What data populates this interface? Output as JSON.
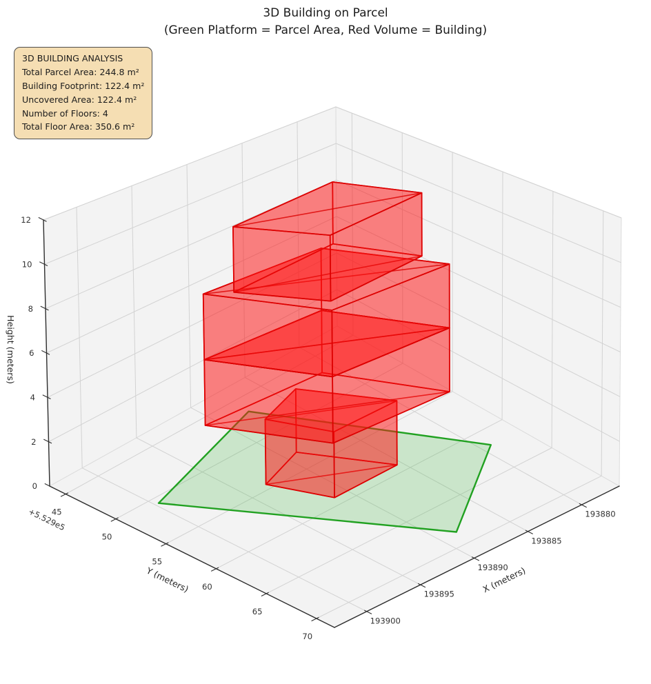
{
  "title": "3D Building on Parcel",
  "subtitle": "(Green Platform = Parcel Area, Red Volume = Building)",
  "info_box": {
    "title": "3D BUILDING ANALYSIS",
    "lines": [
      "Total Parcel Area: 244.8 m²",
      "Building Footprint: 122.4 m²",
      "Uncovered Area: 122.4 m²",
      "Number of Floors: 4",
      "Total Floor Area: 350.6 m²"
    ],
    "bg_color": "#f5deb3",
    "border_color": "#4d4d4d"
  },
  "chart_data": {
    "type": "3d-building-parcel",
    "title": "3D Building on Parcel",
    "subtitle": "(Green Platform = Parcel Area, Red Volume = Building)",
    "stats": {
      "total_parcel_area_m2": 244.8,
      "building_footprint_m2": 122.4,
      "uncovered_area_m2": 122.4,
      "number_of_floors": 4,
      "total_floor_area_m2": 350.6
    },
    "axes": {
      "x": {
        "label": "X (meters)",
        "ticks": [
          193880,
          193885,
          193890,
          193895,
          193900
        ],
        "tick_labels": [
          "193880",
          "193885",
          "193890",
          "193895",
          "193900"
        ],
        "range": [
          193876.5,
          193903.0
        ]
      },
      "y": {
        "label": "Y (meters)",
        "ticks": [
          552945,
          552950,
          552955,
          552960,
          552965,
          552970
        ],
        "tick_labels": [
          "45",
          "50",
          "55",
          "60",
          "65",
          "70"
        ],
        "offset_text": "+5.529e5",
        "range": [
          552943.4,
          552971.8
        ]
      },
      "z": {
        "label": "Height (meters)",
        "ticks": [
          0,
          2,
          4,
          6,
          8,
          10,
          12
        ],
        "tick_labels": [
          "0",
          "2",
          "4",
          "6",
          "8",
          "10",
          "12"
        ],
        "range": [
          0,
          12
        ]
      }
    },
    "parcel": {
      "name": "parcel-platform",
      "fill_color": "#3cb43c",
      "fill_opacity": 0.22,
      "edge_color": "#21a121",
      "corners": [
        [
          193899.7,
          552950.7
        ],
        [
          193888.5,
          552968.4
        ],
        [
          193879.2,
          552961.8
        ],
        [
          193887.7,
          552946.7
        ]
      ]
    },
    "building": {
      "face_color": "#ff1414",
      "face_opacity": 0.31,
      "edge_color": "#dc0000",
      "footprints": {
        "ground": [
          [
            193893.2,
            552954.4
          ],
          [
            193891.2,
            552959.1
          ],
          [
            193885.4,
            552959.1
          ],
          [
            193889.0,
            552952.9
          ]
        ],
        "main": [
          [
            193896.5,
            552952.0
          ],
          [
            193892.3,
            552960.2
          ],
          [
            193882.1,
            552960.8
          ],
          [
            193886.3,
            552952.6
          ]
        ],
        "upper": [
          [
            193894.9,
            552953.3
          ],
          [
            193891.4,
            552959.1
          ],
          [
            193882.5,
            552958.5
          ],
          [
            193885.3,
            552952.7
          ]
        ]
      },
      "floors": [
        {
          "name": "floor-1",
          "footprint": "ground",
          "z": [
            0,
            3
          ]
        },
        {
          "name": "floor-2",
          "footprint": "main",
          "z": [
            3,
            6
          ]
        },
        {
          "name": "floor-3",
          "footprint": "main",
          "z": [
            6,
            9
          ]
        },
        {
          "name": "floor-4",
          "footprint": "upper",
          "z": [
            9,
            12
          ]
        }
      ]
    }
  }
}
